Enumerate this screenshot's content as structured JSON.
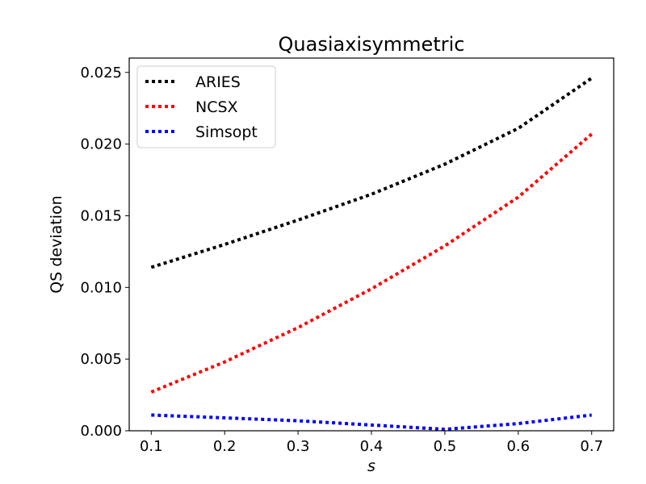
{
  "chart_data": {
    "type": "line",
    "title": "Quasiaxisymmetric",
    "xlabel": "s",
    "ylabel": "QS deviation",
    "xlim": [
      0.07,
      0.73
    ],
    "ylim": [
      0.0,
      0.026
    ],
    "x_ticks": [
      "0.1",
      "0.2",
      "0.3",
      "0.4",
      "0.5",
      "0.6",
      "0.7"
    ],
    "y_ticks": [
      "0.000",
      "0.005",
      "0.010",
      "0.015",
      "0.020",
      "0.025"
    ],
    "grid": false,
    "legend_position": "top-left",
    "series": [
      {
        "name": "ARIES",
        "color": "#000000",
        "line_style": "dotted",
        "x": [
          0.1,
          0.2,
          0.3,
          0.4,
          0.5,
          0.6,
          0.7
        ],
        "values": [
          0.0114,
          0.013,
          0.0147,
          0.0165,
          0.0186,
          0.0211,
          0.0246
        ]
      },
      {
        "name": "NCSX",
        "color": "#ff0000",
        "line_style": "dotted",
        "x": [
          0.1,
          0.2,
          0.3,
          0.4,
          0.5,
          0.6,
          0.7
        ],
        "values": [
          0.0027,
          0.0048,
          0.0072,
          0.0099,
          0.0129,
          0.0163,
          0.0207
        ]
      },
      {
        "name": "Simsopt",
        "color": "#0000ff",
        "line_style": "dotted",
        "x": [
          0.1,
          0.2,
          0.3,
          0.4,
          0.5,
          0.6,
          0.7
        ],
        "values": [
          0.0011,
          0.0009,
          0.0007,
          0.0004,
          0.0001,
          0.0005,
          0.0011
        ]
      }
    ]
  }
}
